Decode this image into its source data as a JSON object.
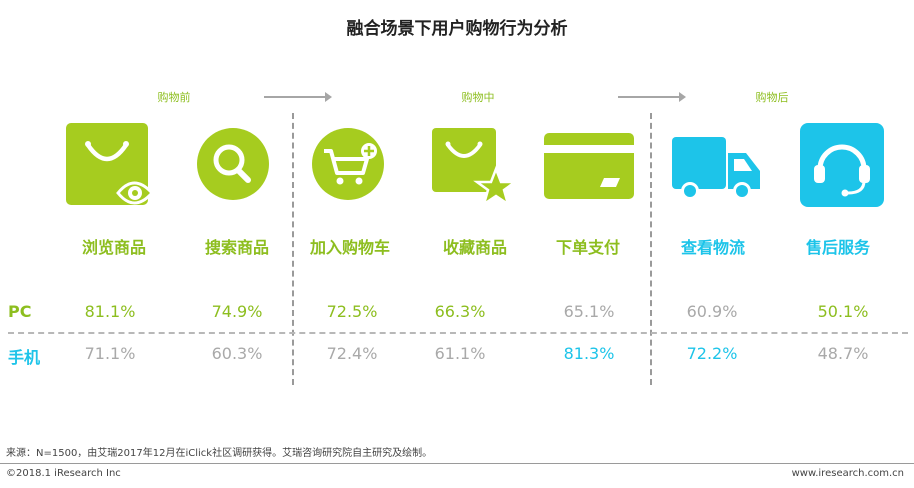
{
  "title": "融合场景下用户购物行为分析",
  "stages": [
    "购物前",
    "购物中",
    "购物后"
  ],
  "colors": {
    "green": "#a6cc1f",
    "blue": "#1dc4e9",
    "gray": "#a9a9a9",
    "green_text": "#8dbe1f"
  },
  "chart_data": {
    "type": "table",
    "categories": [
      "浏览商品",
      "搜索商品",
      "加入购物车",
      "收藏商品",
      "下单支付",
      "查看物流",
      "售后服务"
    ],
    "series": [
      {
        "name": "PC",
        "values": [
          "81.1%",
          "74.9%",
          "72.5%",
          "66.3%",
          "65.1%",
          "60.9%",
          "50.1%"
        ]
      },
      {
        "name": "手机",
        "values": [
          "71.1%",
          "60.3%",
          "72.4%",
          "61.1%",
          "81.3%",
          "72.2%",
          "48.7%"
        ]
      }
    ]
  },
  "icons": [
    "bag-eye-icon",
    "search-icon",
    "cart-add-icon",
    "bag-star-icon",
    "card-icon",
    "truck-icon",
    "headset-icon"
  ],
  "source": "来源：N=1500，由艾瑞2017年12月在iClick社区调研获得。艾瑞咨询研究院自主研究及绘制。",
  "footer": {
    "copyright": "©2018.1  iResearch  Inc",
    "site": "www.iresearch.com.cn"
  }
}
